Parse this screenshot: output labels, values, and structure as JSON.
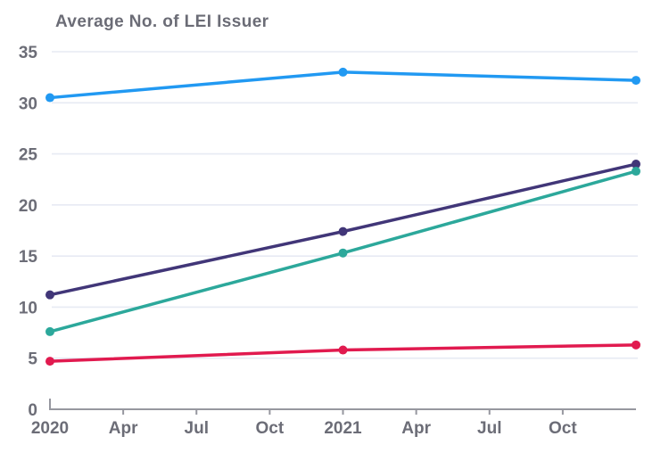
{
  "title": "Average No. of LEI Issuer",
  "colors": {
    "background": "#ffffff",
    "title_text": "#6b6c76",
    "axis_text": "#6c6d77",
    "axis_line": "#96979f",
    "gridline": "#e7eaf3"
  },
  "chart_data": {
    "type": "line",
    "title": "Average No. of LEI Issuer",
    "xlabel": "",
    "ylabel": "",
    "x_tick_labels": [
      "2020",
      "Apr",
      "Jul",
      "Oct",
      "2021",
      "Apr",
      "Jul",
      "Oct"
    ],
    "x_tick_months": [
      0,
      3,
      6,
      9,
      12,
      15,
      18,
      21
    ],
    "x_range_months": [
      0,
      24
    ],
    "y_ticks": [
      0,
      5,
      10,
      15,
      20,
      25,
      30,
      35
    ],
    "ylim": [
      0,
      35
    ],
    "grid": true,
    "legend": "none",
    "series": [
      {
        "name": "light-blue",
        "color": "#2199f2",
        "x_months": [
          0,
          12,
          24
        ],
        "values": [
          30.5,
          33.0,
          32.2
        ]
      },
      {
        "name": "dark-purple",
        "color": "#413678",
        "x_months": [
          0,
          12,
          24
        ],
        "values": [
          11.2,
          17.4,
          24.0
        ]
      },
      {
        "name": "teal",
        "color": "#2ca89b",
        "x_months": [
          0,
          12,
          24
        ],
        "values": [
          7.6,
          15.3,
          23.3
        ]
      },
      {
        "name": "crimson",
        "color": "#e11a4f",
        "x_months": [
          0,
          12,
          24
        ],
        "values": [
          4.7,
          5.8,
          6.3
        ]
      }
    ]
  }
}
